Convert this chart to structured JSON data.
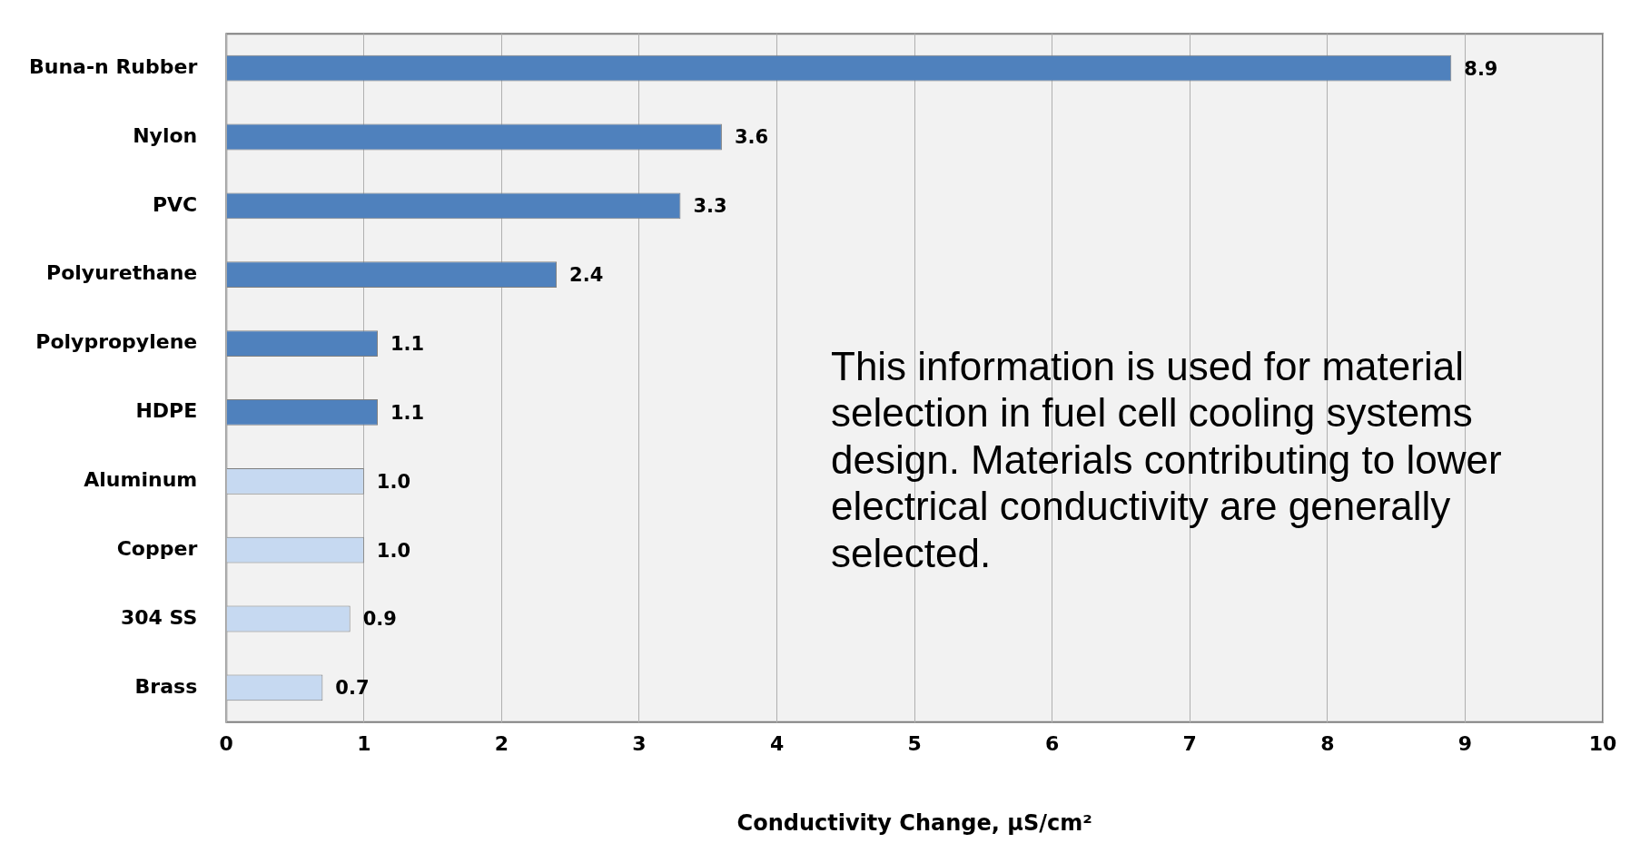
{
  "chart_data": {
    "type": "bar",
    "orientation": "horizontal",
    "xlabel": "Conductivity Change, μS/cm²",
    "categories": [
      "Buna-n Rubber",
      "Nylon",
      "PVC",
      "Polyurethane",
      "Polypropylene",
      "HDPE",
      "Aluminum",
      "Copper",
      "304 SS",
      "Brass"
    ],
    "values": [
      8.9,
      3.6,
      3.3,
      2.4,
      1.1,
      1.1,
      1.0,
      1.0,
      0.9,
      0.7
    ],
    "colors": [
      "#4f81bd",
      "#4f81bd",
      "#4f81bd",
      "#4f81bd",
      "#4f81bd",
      "#4f81bd",
      "#c6d9f1",
      "#c6d9f1",
      "#c6d9f1",
      "#c6d9f1"
    ],
    "value_labels": [
      "8.9",
      "3.6",
      "3.3",
      "2.4",
      "1.1",
      "1.1",
      "1.0",
      "1.0",
      "0.9",
      "0.7"
    ],
    "xlim": [
      0,
      10
    ],
    "xticks": [
      0,
      1,
      2,
      3,
      4,
      5,
      6,
      7,
      8,
      9,
      10
    ],
    "grid": "x",
    "annotations": [
      "This information is used for material selection in fuel cell cooling systems design. Materials contributing to lower electrical conductivity are generally selected."
    ]
  }
}
